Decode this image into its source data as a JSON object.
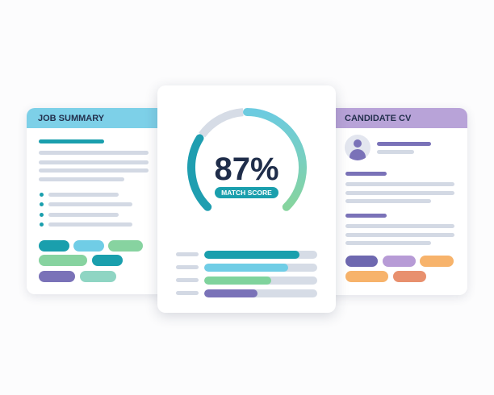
{
  "job_summary": {
    "title": "JOB SUMMARY"
  },
  "match": {
    "score_text": "87%",
    "score_value": 87,
    "label": "MATCH SCORE",
    "bars": [
      {
        "fill": 0.84,
        "color": "#1a9fad"
      },
      {
        "fill": 0.74,
        "color": "#70cde6"
      },
      {
        "fill": 0.59,
        "color": "#7fd39c"
      },
      {
        "fill": 0.47,
        "color": "#7a72b8"
      }
    ]
  },
  "candidate_cv": {
    "title": "CANDIDATE CV"
  },
  "colors": {
    "teal": "#1a9fad",
    "cyan": "#70cde6",
    "green": "#87d3a0",
    "purple": "#7a72b8",
    "lavender": "#b79bd6",
    "orange": "#f7b36b",
    "coral": "#e8906e",
    "text": "#1f2d4a"
  }
}
